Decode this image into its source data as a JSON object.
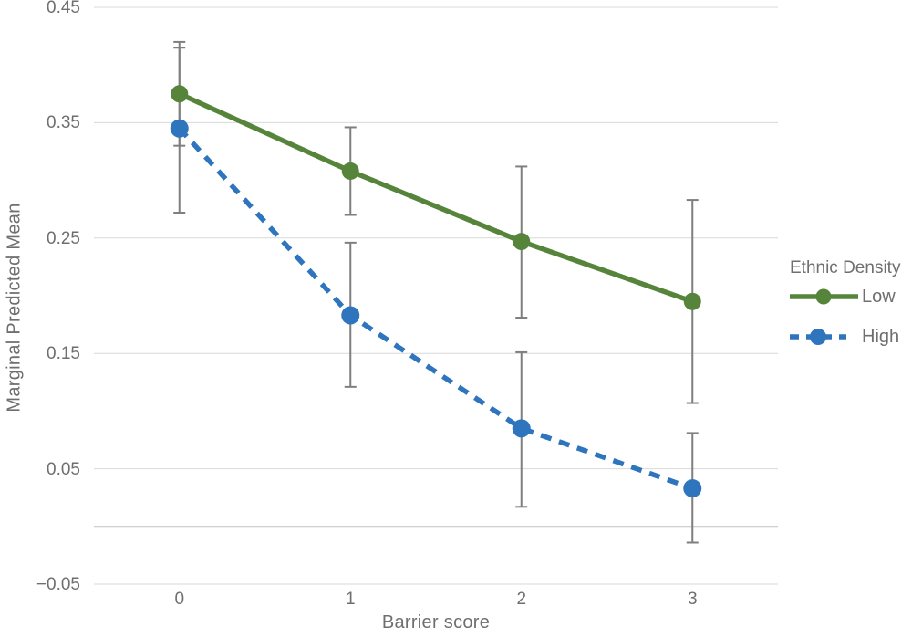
{
  "chart_data": {
    "type": "line",
    "xlabel": "Barrier score",
    "ylabel": "Marginal Predicted Mean",
    "x": [
      0,
      1,
      2,
      3
    ],
    "x_tick_labels": [
      "0",
      "1",
      "2",
      "3"
    ],
    "ylim": [
      -0.05,
      0.45
    ],
    "y_ticks": [
      0.45,
      0.35,
      0.25,
      0.15,
      0.05,
      -0.05
    ],
    "y_tick_labels": [
      "0.45",
      "0.35",
      "0.25",
      "0.15",
      "0.05",
      "−0.05"
    ],
    "zero_line": 0,
    "grid": true,
    "legend": {
      "title": "Ethnic Density",
      "position": "right"
    },
    "series": [
      {
        "name": "Low",
        "style": "solid",
        "color": "#57843B",
        "marker_radius": 9.5,
        "values": [
          0.375,
          0.308,
          0.247,
          0.195
        ],
        "ci_low": [
          0.33,
          0.27,
          0.181,
          0.107
        ],
        "ci_high": [
          0.42,
          0.346,
          0.312,
          0.283
        ]
      },
      {
        "name": "High",
        "style": "dashed",
        "color": "#2E75BE",
        "marker_radius": 10,
        "values": [
          0.345,
          0.183,
          0.085,
          0.033
        ],
        "ci_low": [
          0.272,
          0.121,
          0.017,
          -0.014
        ],
        "ci_high": [
          0.415,
          0.246,
          0.151,
          0.081
        ]
      }
    ],
    "colors": {
      "gridline": "#D9D9D9",
      "zero_line": "#C2C2C2",
      "error_bar": "#7F7F7F",
      "text": "#6F6F6F"
    }
  }
}
